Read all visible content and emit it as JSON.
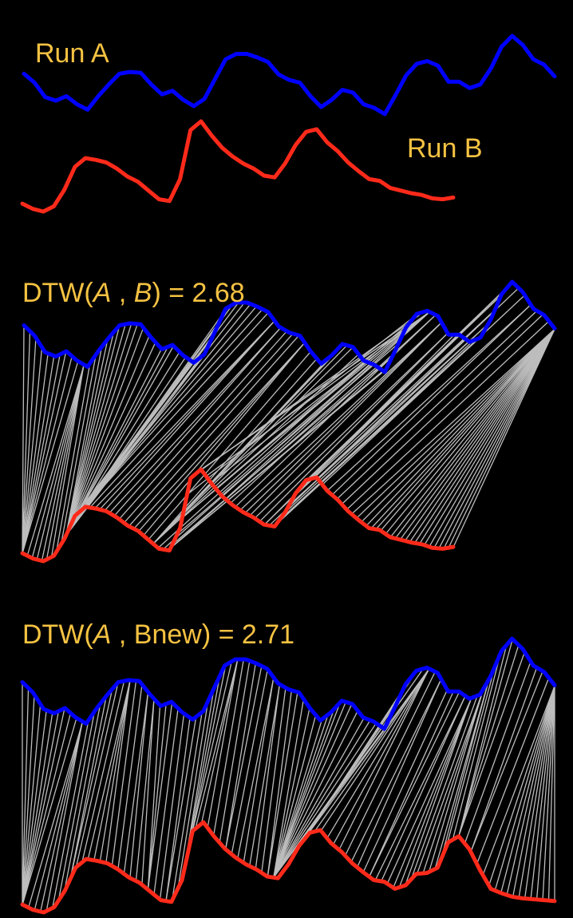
{
  "colors": {
    "background": "#000000",
    "run_a": "#0000FF",
    "run_b": "#FF2A1A",
    "warp_lines": "#BDBDBD",
    "labels": "#F5C242"
  },
  "labels": {
    "run_a": "Run A",
    "run_b": "Run B",
    "dtw1_prefix": "DTW(",
    "dtw1_a": "A",
    "dtw1_sep": " , ",
    "dtw1_b": "B",
    "dtw1_suffix": ") = 2.68",
    "dtw2_prefix": "DTW(",
    "dtw2_a": "A",
    "dtw2_sep": " , Bnew",
    "dtw2_suffix": ") = 2.71"
  },
  "chart_data": [
    {
      "type": "line",
      "series": [
        {
          "name": "Run A",
          "x": [
            0,
            2,
            4,
            6,
            8,
            10,
            12,
            14,
            16,
            18,
            20,
            22,
            24,
            26,
            28,
            30,
            32,
            34,
            36,
            38,
            40,
            42,
            44,
            46,
            48,
            50,
            52,
            54,
            56,
            58,
            60,
            62,
            64,
            66,
            68,
            70,
            72,
            74,
            76,
            78,
            80,
            82,
            84,
            86,
            88,
            90,
            92,
            94,
            96,
            98,
            100
          ],
          "values": [
            58,
            48,
            32,
            28,
            33,
            24,
            18,
            33,
            46,
            58,
            60,
            59,
            46,
            35,
            39,
            29,
            22,
            30,
            52,
            74,
            80,
            80,
            76,
            71,
            57,
            51,
            48,
            33,
            21,
            29,
            40,
            37,
            24,
            20,
            13,
            34,
            56,
            69,
            72,
            67,
            49,
            49,
            42,
            46,
            64,
            88,
            100,
            90,
            74,
            68,
            55
          ]
        },
        {
          "name": "Run B",
          "x": [
            0,
            2,
            4,
            6,
            8,
            10,
            12,
            14,
            16,
            18,
            20,
            22,
            24,
            26,
            28,
            30,
            32,
            34,
            36,
            38,
            40,
            42,
            44,
            46,
            48,
            50,
            52,
            54,
            56,
            58,
            60,
            62,
            64,
            66,
            68,
            70,
            72,
            74,
            76,
            78,
            80,
            82
          ],
          "values": [
            6,
            0,
            -3,
            3,
            22,
            48,
            58,
            56,
            53,
            46,
            37,
            31,
            21,
            11,
            9,
            34,
            90,
            100,
            84,
            70,
            60,
            52,
            46,
            38,
            36,
            52,
            73,
            88,
            91,
            76,
            66,
            53,
            43,
            34,
            32,
            24,
            21,
            18,
            16,
            12,
            11,
            13
          ]
        }
      ]
    },
    {
      "type": "line",
      "title": "DTW(A , B) = 2.68",
      "series": [
        {
          "name": "Run A",
          "x": [
            0,
            2,
            4,
            6,
            8,
            10,
            12,
            14,
            16,
            18,
            20,
            22,
            24,
            26,
            28,
            30,
            32,
            34,
            36,
            38,
            40,
            42,
            44,
            46,
            48,
            50,
            52,
            54,
            56,
            58,
            60,
            62,
            64,
            66,
            68,
            70,
            72,
            74,
            76,
            78,
            80,
            82,
            84,
            86,
            88,
            90,
            92,
            94,
            96,
            98,
            100
          ],
          "values": [
            58,
            48,
            32,
            28,
            33,
            24,
            18,
            33,
            46,
            58,
            60,
            59,
            46,
            35,
            39,
            29,
            22,
            30,
            52,
            74,
            80,
            80,
            76,
            71,
            57,
            51,
            48,
            33,
            21,
            29,
            40,
            37,
            24,
            20,
            13,
            34,
            56,
            69,
            72,
            67,
            49,
            49,
            42,
            46,
            64,
            88,
            100,
            90,
            74,
            68,
            55
          ]
        },
        {
          "name": "Run B",
          "x": [
            0,
            2,
            4,
            6,
            8,
            10,
            12,
            14,
            16,
            18,
            20,
            22,
            24,
            26,
            28,
            30,
            32,
            34,
            36,
            38,
            40,
            42,
            44,
            46,
            48,
            50,
            52,
            54,
            56,
            58,
            60,
            62,
            64,
            66,
            68,
            70,
            72,
            74,
            76,
            78,
            80,
            82
          ],
          "values": [
            6,
            0,
            -3,
            3,
            22,
            48,
            58,
            56,
            53,
            46,
            37,
            31,
            21,
            11,
            9,
            34,
            90,
            100,
            84,
            70,
            60,
            52,
            46,
            38,
            36,
            52,
            73,
            88,
            91,
            76,
            66,
            53,
            43,
            34,
            32,
            24,
            21,
            18,
            16,
            12,
            11,
            13
          ]
        }
      ]
    },
    {
      "type": "line",
      "title": "DTW(A , Bnew) = 2.71",
      "series": [
        {
          "name": "Run A",
          "x": [
            0,
            2,
            4,
            6,
            8,
            10,
            12,
            14,
            16,
            18,
            20,
            22,
            24,
            26,
            28,
            30,
            32,
            34,
            36,
            38,
            40,
            42,
            44,
            46,
            48,
            50,
            52,
            54,
            56,
            58,
            60,
            62,
            64,
            66,
            68,
            70,
            72,
            74,
            76,
            78,
            80,
            82,
            84,
            86,
            88,
            90,
            92,
            94,
            96,
            98,
            100
          ],
          "values": [
            58,
            48,
            32,
            28,
            33,
            24,
            18,
            33,
            46,
            58,
            60,
            59,
            46,
            35,
            39,
            29,
            22,
            30,
            52,
            74,
            80,
            80,
            76,
            71,
            57,
            51,
            48,
            33,
            21,
            29,
            40,
            37,
            24,
            20,
            13,
            34,
            56,
            69,
            72,
            67,
            49,
            49,
            42,
            46,
            64,
            88,
            100,
            90,
            74,
            68,
            55
          ]
        },
        {
          "name": "Bnew",
          "x": [
            0,
            2,
            4,
            6,
            8,
            10,
            12,
            14,
            16,
            18,
            20,
            22,
            24,
            26,
            28,
            30,
            32,
            34,
            36,
            38,
            40,
            42,
            44,
            46,
            48,
            50,
            52,
            54,
            56,
            58,
            60,
            62,
            64,
            66,
            68,
            70,
            72,
            74,
            76,
            78,
            80,
            82,
            84,
            86,
            88,
            90,
            92,
            94,
            96,
            98,
            100
          ],
          "values": [
            6,
            0,
            -3,
            3,
            22,
            48,
            58,
            56,
            53,
            46,
            37,
            31,
            21,
            11,
            9,
            34,
            90,
            100,
            84,
            70,
            60,
            52,
            46,
            38,
            36,
            52,
            73,
            88,
            91,
            76,
            66,
            53,
            43,
            34,
            32,
            24,
            28,
            41,
            42,
            48,
            77,
            84,
            69,
            45,
            24,
            19,
            15,
            13,
            12,
            11,
            10
          ]
        }
      ]
    }
  ]
}
